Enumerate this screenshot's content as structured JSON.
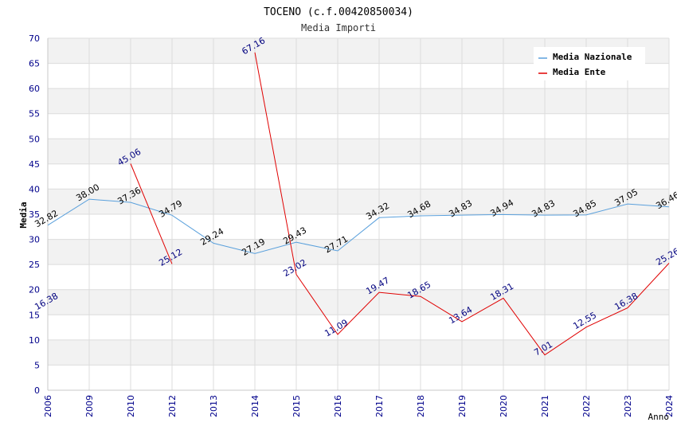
{
  "chart_data": {
    "type": "line",
    "title": "TOCENO (c.f.00420850034)",
    "subtitle": "Media Importi",
    "xlabel": "Anno",
    "ylabel": "Media",
    "ylim": [
      0,
      70
    ],
    "yticks": [
      "0",
      "5",
      "10",
      "15",
      "20",
      "25",
      "30",
      "35",
      "40",
      "45",
      "50",
      "55",
      "60",
      "65",
      "70"
    ],
    "categories": [
      "2006",
      "2009",
      "2010",
      "2012",
      "2013",
      "2014",
      "2015",
      "2016",
      "2017",
      "2018",
      "2019",
      "2020",
      "2021",
      "2022",
      "2023",
      "2024"
    ],
    "grid": true,
    "legend_position": "top-right",
    "series": [
      {
        "name": "Media Nazionale",
        "color": "#5aa0dc",
        "label_color": "#000000",
        "values": [
          32.82,
          38.0,
          37.36,
          34.79,
          29.24,
          27.19,
          29.43,
          27.71,
          34.32,
          34.68,
          34.83,
          34.94,
          34.83,
          34.85,
          37.05,
          36.46
        ],
        "labels": [
          "32.82",
          "38.00",
          "37.36",
          "34.79",
          "29.24",
          "27.19",
          "29.43",
          "27.71",
          "34.32",
          "34.68",
          "34.83",
          "34.94",
          "34.83",
          "34.85",
          "37.05",
          "36.46"
        ]
      },
      {
        "name": "Media Ente",
        "color": "#e00000",
        "label_color": "#00007f",
        "values": [
          16.38,
          null,
          45.06,
          25.12,
          null,
          67.16,
          23.02,
          11.09,
          19.47,
          18.65,
          13.64,
          18.31,
          7.01,
          12.55,
          16.38,
          25.26
        ],
        "labels": [
          "16.38",
          null,
          "45.06",
          "25.12",
          null,
          "67.16",
          "23.02",
          "11.09",
          "19.47",
          "18.65",
          "13.64",
          "18.31",
          "7.01",
          "12.55",
          "16.38",
          "25.26"
        ]
      }
    ]
  },
  "colors": {
    "axis_label": "#00008b",
    "band": "#f2f2f2",
    "grid": "#dcdcdc"
  }
}
